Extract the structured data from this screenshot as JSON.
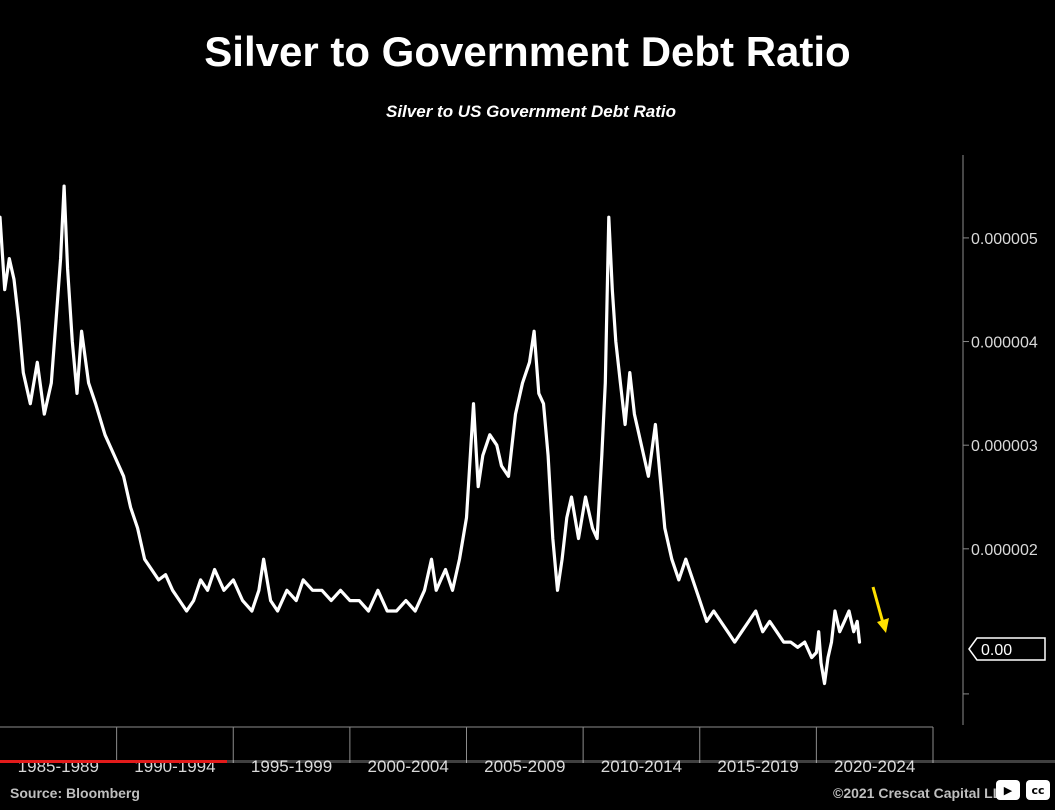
{
  "chart_data": {
    "type": "line",
    "title": "Silver to Government Debt Ratio",
    "subtitle": "Silver to US Government Debt Ratio",
    "x_tick_labels": [
      "1985-1989",
      "1990-1994",
      "1995-1999",
      "2000-2004",
      "2005-2009",
      "2010-2014",
      "2015-2019",
      "2020-2024"
    ],
    "x_range": [
      1985.0,
      2025.0
    ],
    "y_tick_values": [
      2e-06,
      3e-06,
      4e-06,
      5e-06
    ],
    "y_tick_labels": [
      "0.000002",
      "0.000003",
      "0.000004",
      "0.000005"
    ],
    "ylim": [
      3e-07,
      5.8e-06
    ],
    "y_axis_position": "right",
    "grid": false,
    "last_value_label": "0.00",
    "series": [
      {
        "color": "#ffffff",
        "x": [
          1985.0,
          1985.2,
          1985.4,
          1985.6,
          1985.8,
          1986.0,
          1986.3,
          1986.6,
          1986.9,
          1987.2,
          1987.4,
          1987.6,
          1987.75,
          1987.9,
          1988.1,
          1988.3,
          1988.5,
          1988.8,
          1989.1,
          1989.5,
          1989.9,
          1990.3,
          1990.6,
          1990.9,
          1991.2,
          1991.5,
          1991.8,
          1992.1,
          1992.4,
          1992.7,
          1993.0,
          1993.3,
          1993.6,
          1993.9,
          1994.2,
          1994.6,
          1995.0,
          1995.4,
          1995.8,
          1996.1,
          1996.3,
          1996.6,
          1996.9,
          1997.3,
          1997.7,
          1998.0,
          1998.4,
          1998.8,
          1999.2,
          1999.6,
          2000.0,
          2000.4,
          2000.8,
          2001.2,
          2001.6,
          2002.0,
          2002.4,
          2002.8,
          2003.2,
          2003.5,
          2003.7,
          2003.9,
          2004.1,
          2004.4,
          2004.7,
          2005.0,
          2005.3,
          2005.5,
          2005.7,
          2006.0,
          2006.3,
          2006.5,
          2006.8,
          2007.1,
          2007.4,
          2007.7,
          2007.9,
          2008.1,
          2008.3,
          2008.5,
          2008.7,
          2008.9,
          2009.1,
          2009.3,
          2009.5,
          2009.8,
          2010.1,
          2010.4,
          2010.6,
          2010.8,
          2010.95,
          2011.1,
          2011.25,
          2011.4,
          2011.6,
          2011.8,
          2012.0,
          2012.2,
          2012.5,
          2012.8,
          2013.1,
          2013.3,
          2013.5,
          2013.8,
          2014.1,
          2014.4,
          2014.7,
          2015.0,
          2015.3,
          2015.6,
          2015.9,
          2016.2,
          2016.5,
          2016.8,
          2017.1,
          2017.4,
          2017.7,
          2018.0,
          2018.3,
          2018.6,
          2018.9,
          2019.2,
          2019.5,
          2019.8,
          2020.0,
          2020.1,
          2020.2,
          2020.35,
          2020.5,
          2020.65,
          2020.8,
          2021.0,
          2021.2,
          2021.4,
          2021.6,
          2021.75,
          2021.85
        ],
        "y": [
          5.2e-06,
          4.5e-06,
          4.8e-06,
          4.6e-06,
          4.2e-06,
          3.7e-06,
          3.4e-06,
          3.8e-06,
          3.3e-06,
          3.6e-06,
          4.2e-06,
          4.8e-06,
          5.5e-06,
          4.7e-06,
          4e-06,
          3.5e-06,
          4.1e-06,
          3.6e-06,
          3.4e-06,
          3.1e-06,
          2.9e-06,
          2.7e-06,
          2.4e-06,
          2.2e-06,
          1.9e-06,
          1.8e-06,
          1.7e-06,
          1.75e-06,
          1.6e-06,
          1.5e-06,
          1.4e-06,
          1.5e-06,
          1.7e-06,
          1.6e-06,
          1.8e-06,
          1.6e-06,
          1.7e-06,
          1.5e-06,
          1.4e-06,
          1.6e-06,
          1.9e-06,
          1.5e-06,
          1.4e-06,
          1.6e-06,
          1.5e-06,
          1.7e-06,
          1.6e-06,
          1.6e-06,
          1.5e-06,
          1.6e-06,
          1.5e-06,
          1.5e-06,
          1.4e-06,
          1.6e-06,
          1.4e-06,
          1.4e-06,
          1.5e-06,
          1.4e-06,
          1.6e-06,
          1.9e-06,
          1.6e-06,
          1.7e-06,
          1.8e-06,
          1.6e-06,
          1.9e-06,
          2.3e-06,
          3.4e-06,
          2.6e-06,
          2.9e-06,
          3.1e-06,
          3e-06,
          2.8e-06,
          2.7e-06,
          3.3e-06,
          3.6e-06,
          3.8e-06,
          4.1e-06,
          3.5e-06,
          3.4e-06,
          2.9e-06,
          2.1e-06,
          1.6e-06,
          1.9e-06,
          2.3e-06,
          2.5e-06,
          2.1e-06,
          2.5e-06,
          2.2e-06,
          2.1e-06,
          2.9e-06,
          3.6e-06,
          5.2e-06,
          4.5e-06,
          4e-06,
          3.6e-06,
          3.2e-06,
          3.7e-06,
          3.3e-06,
          3e-06,
          2.7e-06,
          3.2e-06,
          2.7e-06,
          2.2e-06,
          1.9e-06,
          1.7e-06,
          1.9e-06,
          1.7e-06,
          1.5e-06,
          1.3e-06,
          1.4e-06,
          1.3e-06,
          1.2e-06,
          1.1e-06,
          1.2e-06,
          1.3e-06,
          1.4e-06,
          1.2e-06,
          1.3e-06,
          1.2e-06,
          1.1e-06,
          1.1e-06,
          1.05e-06,
          1.1e-06,
          9.5e-07,
          1e-06,
          1.2e-06,
          9e-07,
          7e-07,
          9.5e-07,
          1.1e-06,
          1.4e-06,
          1.2e-06,
          1.3e-06,
          1.4e-06,
          1.2e-06,
          1.3e-06,
          1.1e-06
        ]
      }
    ]
  },
  "annotation": {
    "arrow_color": "#ffe000"
  },
  "footer": {
    "source": "Source: Bloomberg",
    "copyright": "©2021 Crescat Capital LLC"
  },
  "video": {
    "cc_label": "cc",
    "progress": 0.215
  }
}
